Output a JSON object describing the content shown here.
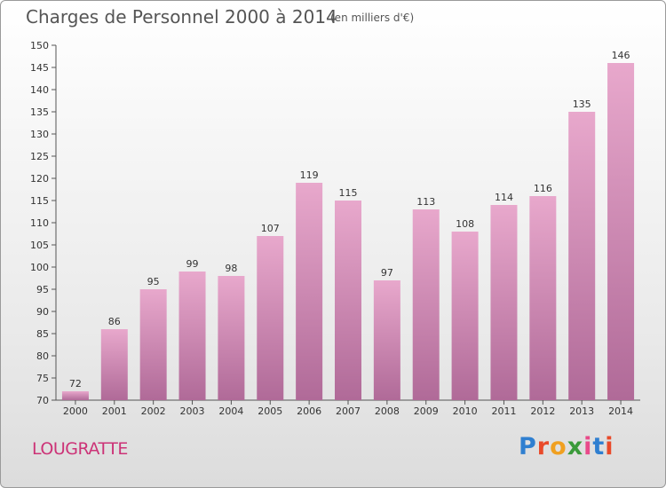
{
  "header": {
    "title": "Charges de Personnel 2000 à 2014",
    "subtitle": "(en milliers d'€)"
  },
  "footer": {
    "commune": "LOUGRATTE",
    "logo_text": "Proxiti"
  },
  "colors": {
    "bar_top": "#e8a8cc",
    "bar_bottom": "#b06a98",
    "commune_text": "#cc3377"
  },
  "chart_data": {
    "type": "bar",
    "title": "Charges de Personnel 2000 à 2014",
    "subtitle": "(en milliers d'€)",
    "xlabel": "",
    "ylabel": "",
    "categories": [
      "2000",
      "2001",
      "2002",
      "2003",
      "2004",
      "2005",
      "2006",
      "2007",
      "2008",
      "2009",
      "2010",
      "2011",
      "2012",
      "2013",
      "2014"
    ],
    "values": [
      72,
      86,
      95,
      99,
      98,
      107,
      119,
      115,
      97,
      113,
      108,
      114,
      116,
      135,
      146
    ],
    "ylim": [
      70,
      150
    ],
    "yticks": [
      70,
      75,
      80,
      85,
      90,
      95,
      100,
      105,
      110,
      115,
      120,
      125,
      130,
      135,
      140,
      145,
      150
    ],
    "grid": false,
    "data_labels": true
  }
}
